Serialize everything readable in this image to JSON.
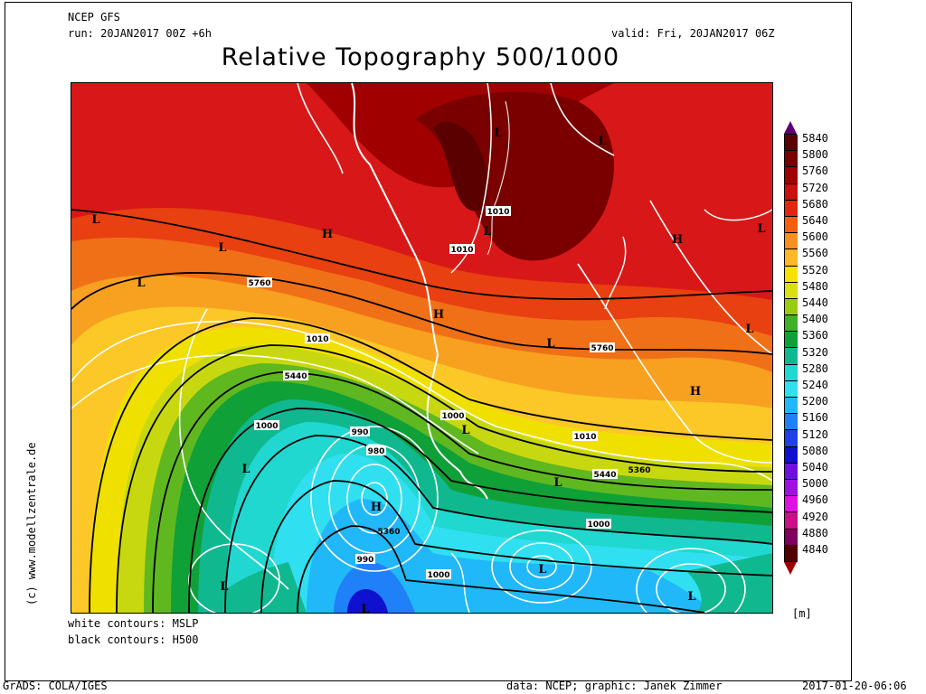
{
  "header": {
    "model": "NCEP GFS",
    "run": "run: 20JAN2017 00Z +6h",
    "valid": "valid: Fri, 20JAN2017 06Z",
    "title": "Relative Topography 500/1000"
  },
  "legend_notes": {
    "white": "white contours: MSLP",
    "black": "black contours: H500"
  },
  "side_credit": "(c) www.modellzentrale.de",
  "colorbar": {
    "unit": "[m]",
    "labels": [
      "5840",
      "5800",
      "5760",
      "5720",
      "5680",
      "5640",
      "5600",
      "5560",
      "5520",
      "5480",
      "5440",
      "5400",
      "5360",
      "5320",
      "5280",
      "5240",
      "5200",
      "5160",
      "5120",
      "5080",
      "5040",
      "5000",
      "4960",
      "4920",
      "4880",
      "4840"
    ],
    "colors": [
      "#5a0000",
      "#7a0000",
      "#a00000",
      "#c81010",
      "#e02810",
      "#f06010",
      "#f89020",
      "#fcb828",
      "#f8e000",
      "#d8e010",
      "#98cc10",
      "#40b028",
      "#10a038",
      "#10b890",
      "#20d8d0",
      "#30e0f0",
      "#20b8f8",
      "#2080f8",
      "#2040e8",
      "#1010d0",
      "#7010e0",
      "#a010e0",
      "#e010e0",
      "#c81088",
      "#800060",
      "#500000"
    ],
    "top_arrow": "#5a0070",
    "bottom_arrow": "#a00000"
  },
  "map_labels": {
    "pressure_centers": [
      "L",
      "L",
      "L",
      "L",
      "H",
      "L",
      "L",
      "H",
      "H",
      "L",
      "L",
      "L",
      "L",
      "H",
      "L",
      "L",
      "H",
      "L",
      "L",
      "L",
      "L",
      "L"
    ],
    "contour_values": [
      "1010",
      "1010",
      "5760",
      "1010",
      "5440",
      "1000",
      "990",
      "980",
      "1000",
      "1010",
      "5760",
      "5440",
      "5360",
      "1000",
      "990",
      "1000",
      "5360"
    ]
  },
  "footer": {
    "left": "GrADS: COLA/IGES",
    "middle": "data: NCEP; graphic: Janek Zimmer",
    "right": "2017-01-20-06:06"
  }
}
